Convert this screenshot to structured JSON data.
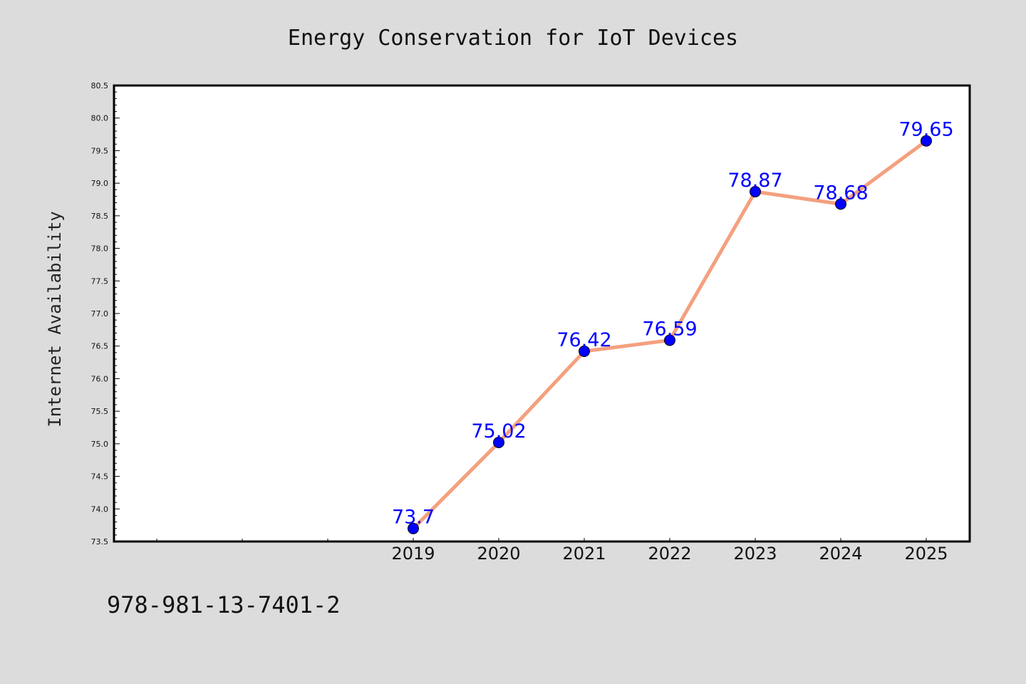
{
  "chart_data": {
    "type": "line",
    "title": "Energy Conservation for IoT Devices",
    "xlabel": "",
    "ylabel": "Internet Availability",
    "categories": [
      "2019",
      "2020",
      "2021",
      "2022",
      "2023",
      "2024",
      "2025"
    ],
    "series": [
      {
        "values": [
          73.7,
          75.02,
          76.42,
          76.59,
          78.87,
          78.68,
          79.65
        ]
      }
    ],
    "data_labels": [
      "73.7",
      "75.02",
      "76.42",
      "76.59",
      "78.87",
      "78.68",
      "79.65"
    ],
    "ylim": [
      73.5,
      80.5
    ],
    "yticks": [
      "73.5",
      "74.0",
      "74.5",
      "75.0",
      "75.5",
      "76.0",
      "76.5",
      "77.0",
      "77.5",
      "78.0",
      "78.5",
      "79.0",
      "79.5",
      "80.0",
      "80.5"
    ],
    "grid": false,
    "line_color": "#f4a07e",
    "marker_color": "#0000ff",
    "label_color": "#0000ff"
  },
  "footer": {
    "isbn": "978-981-13-7401-2"
  }
}
